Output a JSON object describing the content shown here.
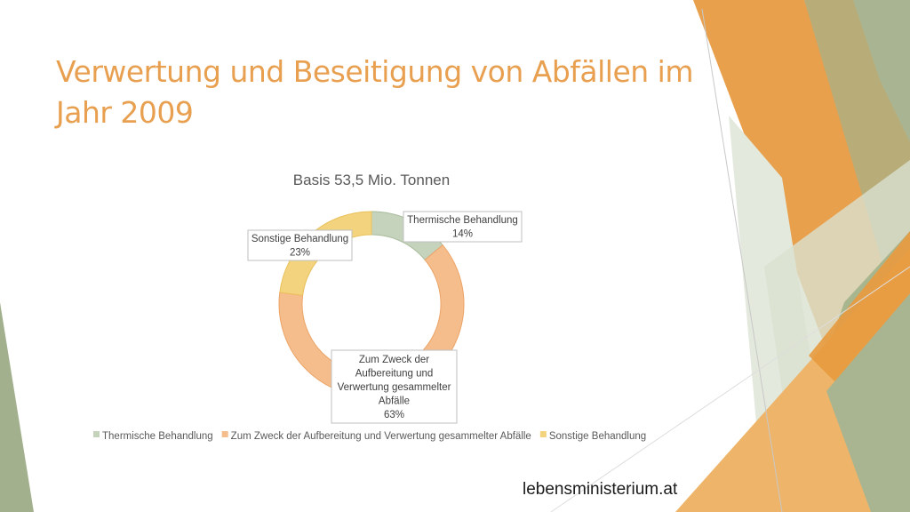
{
  "slide": {
    "title": "Verwertung und Beseitigung von Abfällen im Jahr 2009",
    "footer": "lebensministerium.at"
  },
  "chart_data": {
    "type": "pie",
    "donut": true,
    "title": "Basis 53,5 Mio. Tonnen",
    "categories": [
      "Thermische Behandlung",
      "Zum Zweck der Aufbereitung und Verwertung gesammelter Abfälle",
      "Sonstige Behandlung"
    ],
    "values": [
      14,
      63,
      23
    ],
    "unit": "%",
    "data_labels": [
      [
        "Thermische Behandlung",
        "14%"
      ],
      [
        "Zum Zweck der",
        "Aufbereitung und",
        "Verwertung gesammelter",
        "Abfälle",
        "63%"
      ],
      [
        "Sonstige Behandlung",
        "23%"
      ]
    ],
    "colors": [
      "#c5d3bd",
      "#f5bd8c",
      "#f3d37e"
    ],
    "legend_position": "bottom"
  },
  "decor_colors": {
    "orange": "#e8a04c",
    "olive": "#b8b07a",
    "sage": "#a7b591",
    "light_sage": "#dfe6d8"
  }
}
